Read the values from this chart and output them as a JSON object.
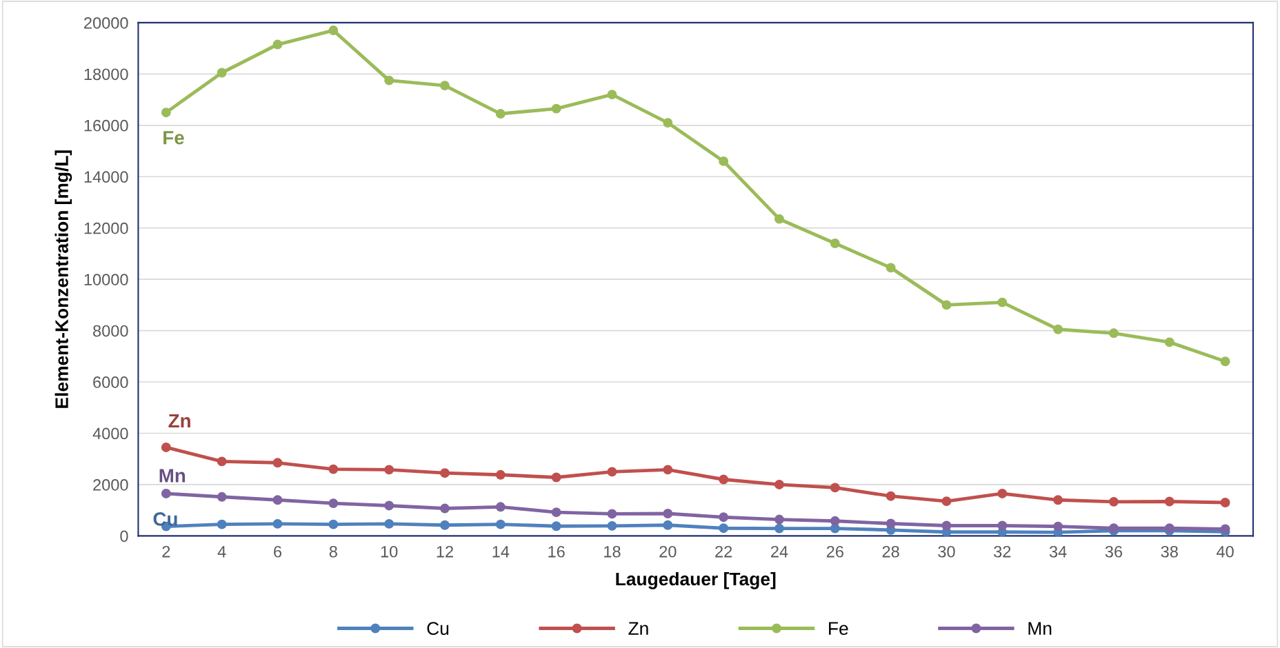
{
  "chart_data": {
    "type": "line",
    "xlabel": "Laugedauer [Tage]",
    "ylabel": "Element-Konzentration [mg/L]",
    "categories": [
      "2",
      "4",
      "6",
      "8",
      "10",
      "12",
      "14",
      "16",
      "18",
      "20",
      "22",
      "24",
      "26",
      "28",
      "30",
      "32",
      "34",
      "36",
      "38",
      "40"
    ],
    "series": [
      {
        "name": "Cu",
        "color": "#4f81bd",
        "values": [
          370,
          450,
          470,
          450,
          470,
          420,
          450,
          380,
          390,
          420,
          300,
          290,
          290,
          230,
          150,
          150,
          140,
          200,
          200,
          160
        ]
      },
      {
        "name": "Zn",
        "color": "#c0504d",
        "values": [
          3450,
          2900,
          2850,
          2600,
          2580,
          2450,
          2380,
          2280,
          2500,
          2580,
          2200,
          2000,
          1880,
          1550,
          1350,
          1650,
          1400,
          1330,
          1340,
          1300
        ]
      },
      {
        "name": "Fe",
        "color": "#9bbb59",
        "values": [
          16500,
          18050,
          19150,
          19700,
          17750,
          17550,
          16450,
          16650,
          17200,
          16100,
          14600,
          12350,
          11400,
          10450,
          9000,
          9100,
          8050,
          7900,
          7550,
          6800
        ]
      },
      {
        "name": "Mn",
        "color": "#8064a2",
        "values": [
          1650,
          1520,
          1400,
          1270,
          1180,
          1070,
          1130,
          920,
          860,
          870,
          730,
          640,
          580,
          480,
          400,
          400,
          370,
          300,
          300,
          270
        ]
      }
    ],
    "annotations": [
      "Cu",
      "Zn",
      "Fe",
      "Mn"
    ],
    "ylim": [
      0,
      20000
    ],
    "yticks": [
      0,
      2000,
      4000,
      6000,
      8000,
      10000,
      12000,
      14000,
      16000,
      18000,
      20000
    ],
    "grid": "y",
    "legend": "bottom",
    "marker": "circle",
    "line_style": "solid"
  }
}
